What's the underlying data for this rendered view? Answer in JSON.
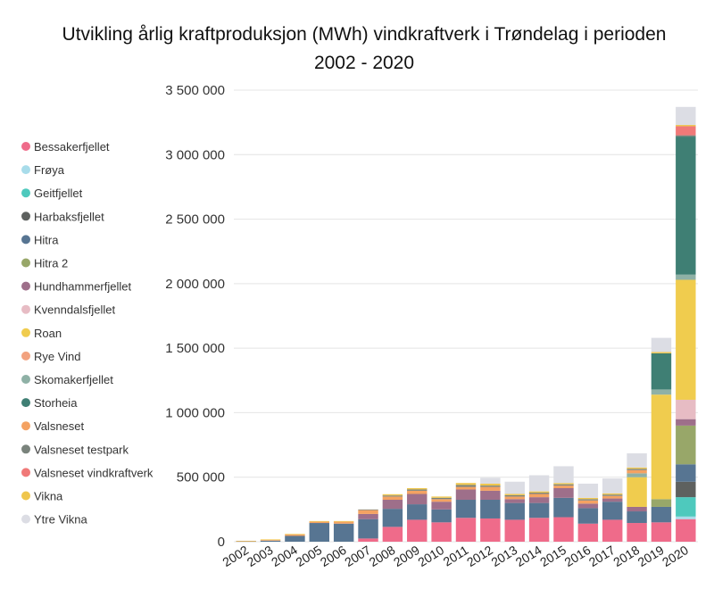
{
  "chart_data": {
    "type": "bar",
    "stacked": true,
    "title": "Utvikling årlig kraftproduksjon (MWh) vindkraftverk i Trøndelag i perioden",
    "subtitle": "2002 - 2020",
    "xlabel": "",
    "ylabel": "",
    "ylim": [
      0,
      3500000
    ],
    "yticks": [
      0,
      500000,
      1000000,
      1500000,
      2000000,
      2500000,
      3000000,
      3500000
    ],
    "ytick_labels": [
      "0",
      "500 000",
      "1 000 000",
      "1 500 000",
      "2 000 000",
      "2 500 000",
      "3 000 000",
      "3 500 000"
    ],
    "grid": true,
    "legend_position": "left",
    "categories": [
      "2002",
      "2003",
      "2004",
      "2005",
      "2006",
      "2007",
      "2008",
      "2009",
      "2010",
      "2011",
      "2012",
      "2013",
      "2014",
      "2015",
      "2016",
      "2017",
      "2018",
      "2019",
      "2020"
    ],
    "series": [
      {
        "name": "Bessakerfjellet",
        "color": "#ef6b8a",
        "values": [
          0,
          0,
          0,
          0,
          0,
          25000,
          115000,
          170000,
          150000,
          185000,
          180000,
          170000,
          185000,
          190000,
          140000,
          170000,
          145000,
          150000,
          175000
        ]
      },
      {
        "name": "Frøya",
        "color": "#a8dcea",
        "values": [
          0,
          0,
          0,
          0,
          0,
          0,
          0,
          0,
          0,
          0,
          0,
          0,
          0,
          0,
          0,
          0,
          0,
          0,
          20000
        ]
      },
      {
        "name": "Geitfjellet",
        "color": "#4ec9bd",
        "values": [
          0,
          0,
          0,
          0,
          0,
          0,
          0,
          0,
          0,
          0,
          0,
          0,
          0,
          0,
          0,
          0,
          0,
          0,
          150000
        ]
      },
      {
        "name": "Harbaksfjellet",
        "color": "#5e615f",
        "values": [
          0,
          0,
          0,
          0,
          0,
          0,
          0,
          0,
          0,
          0,
          0,
          0,
          0,
          0,
          0,
          0,
          0,
          0,
          120000
        ]
      },
      {
        "name": "Hitra",
        "color": "#577592",
        "values": [
          3000,
          8000,
          45000,
          145000,
          140000,
          150000,
          140000,
          120000,
          100000,
          140000,
          145000,
          130000,
          115000,
          150000,
          120000,
          140000,
          90000,
          120000,
          135000
        ]
      },
      {
        "name": "Hitra 2",
        "color": "#98a769",
        "values": [
          0,
          0,
          0,
          0,
          0,
          0,
          0,
          0,
          0,
          0,
          0,
          0,
          0,
          0,
          0,
          0,
          0,
          60000,
          300000
        ]
      },
      {
        "name": "Hundhammerfjellet",
        "color": "#9e6f8a",
        "values": [
          0,
          0,
          0,
          0,
          0,
          40000,
          70000,
          80000,
          60000,
          80000,
          70000,
          30000,
          45000,
          75000,
          35000,
          25000,
          35000,
          0,
          50000
        ]
      },
      {
        "name": "Kvenndalsfjellet",
        "color": "#e7bcc4",
        "values": [
          0,
          0,
          0,
          0,
          0,
          0,
          0,
          0,
          0,
          0,
          0,
          0,
          0,
          0,
          0,
          0,
          0,
          0,
          150000
        ]
      },
      {
        "name": "Roan",
        "color": "#f0cc4e",
        "values": [
          0,
          0,
          0,
          0,
          0,
          0,
          0,
          0,
          0,
          0,
          0,
          0,
          0,
          0,
          0,
          0,
          230000,
          810000,
          930000
        ]
      },
      {
        "name": "Rye Vind",
        "color": "#f2a27f",
        "values": [
          0,
          0,
          0,
          0,
          0,
          0,
          0,
          0,
          0,
          0,
          0,
          0,
          0,
          0,
          0,
          0,
          0,
          0,
          0
        ]
      },
      {
        "name": "Skomakerfjellet",
        "color": "#8fb1a6",
        "values": [
          0,
          0,
          0,
          0,
          0,
          0,
          0,
          0,
          0,
          0,
          0,
          0,
          0,
          0,
          0,
          0,
          30000,
          40000,
          40000
        ]
      },
      {
        "name": "Storheia",
        "color": "#3f7f74",
        "values": [
          0,
          0,
          0,
          0,
          0,
          0,
          0,
          0,
          0,
          0,
          0,
          0,
          0,
          0,
          0,
          0,
          0,
          280000,
          1070000
        ]
      },
      {
        "name": "Valsneset",
        "color": "#f4a262",
        "values": [
          2000,
          5000,
          10000,
          10000,
          15000,
          30000,
          25000,
          25000,
          20000,
          20000,
          30000,
          20000,
          25000,
          20000,
          25000,
          20000,
          25000,
          0,
          0
        ]
      },
      {
        "name": "Valsneset testpark",
        "color": "#7a837c",
        "values": [
          0,
          0,
          0,
          0,
          0,
          5000,
          8000,
          10000,
          10000,
          15000,
          10000,
          10000,
          10000,
          10000,
          10000,
          10000,
          10000,
          0,
          10000
        ]
      },
      {
        "name": "Valsneset vindkraftverk",
        "color": "#f07978",
        "values": [
          0,
          0,
          0,
          0,
          0,
          0,
          0,
          0,
          0,
          0,
          0,
          0,
          0,
          0,
          0,
          0,
          0,
          0,
          70000
        ]
      },
      {
        "name": "Vikna",
        "color": "#efc64d",
        "values": [
          2000,
          5000,
          5000,
          5000,
          5000,
          0,
          10000,
          10000,
          10000,
          15000,
          15000,
          10000,
          10000,
          10000,
          10000,
          10000,
          10000,
          10000,
          10000
        ]
      },
      {
        "name": "Ytre Vikna",
        "color": "#dcdde4",
        "values": [
          0,
          0,
          0,
          0,
          0,
          0,
          0,
          0,
          0,
          0,
          45000,
          95000,
          125000,
          130000,
          110000,
          115000,
          110000,
          110000,
          140000
        ]
      }
    ]
  }
}
